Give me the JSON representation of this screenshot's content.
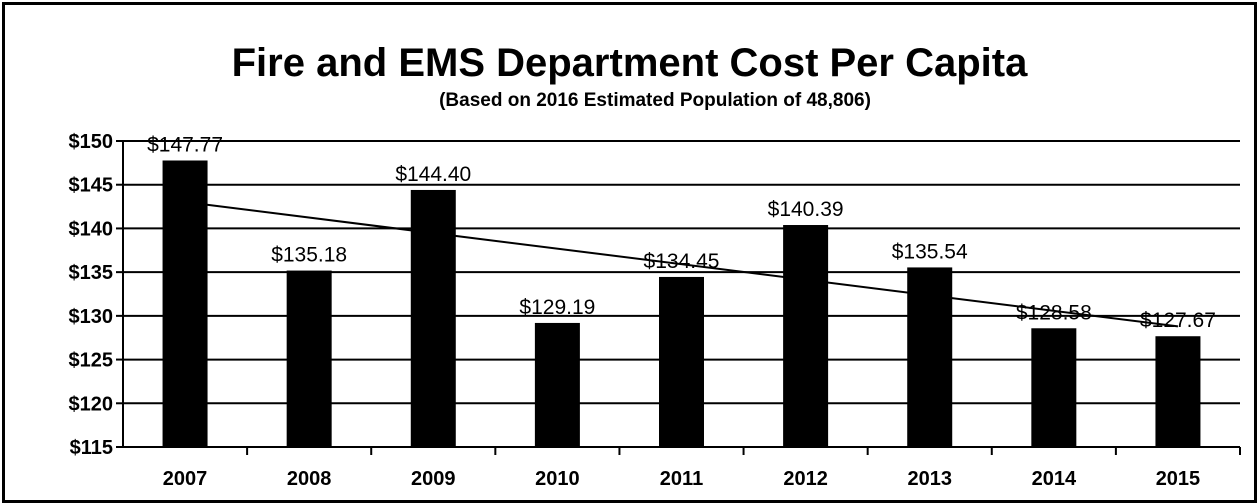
{
  "chart_data": {
    "type": "bar",
    "title": "Fire and EMS Department Cost Per Capita",
    "subtitle": "(Based on 2016 Estimated Population of 48,806)",
    "categories": [
      "2007",
      "2008",
      "2009",
      "2010",
      "2011",
      "2012",
      "2013",
      "2014",
      "2015"
    ],
    "values": [
      147.77,
      135.18,
      144.4,
      129.19,
      134.45,
      140.39,
      135.54,
      128.58,
      127.67
    ],
    "data_labels": [
      "$147.77",
      "$135.18",
      "$144.40",
      "$129.19",
      "$134.45",
      "$140.39",
      "$135.54",
      "$128.58",
      "$127.67"
    ],
    "y_ticks": [
      "$150",
      "$145",
      "$140",
      "$135",
      "$130",
      "$125",
      "$120",
      "$115"
    ],
    "ylim": [
      115,
      150
    ],
    "grid": true,
    "trendline": "linear",
    "bar_color": "#000000"
  }
}
